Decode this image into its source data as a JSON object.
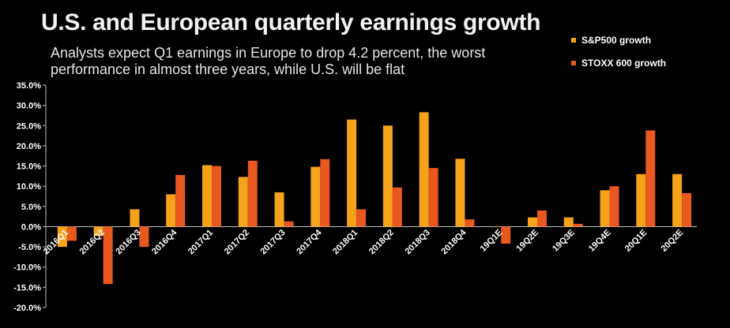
{
  "chart_data": {
    "type": "bar",
    "title": "U.S. and European quarterly earnings growth",
    "subtitle": "Analysts expect Q1 earnings in Europe to drop 4.2 percent, the worst performance in almost three years, while U.S. will be flat",
    "categories": [
      "2016Q1",
      "2016Q2",
      "2016Q3",
      "2016Q4",
      "2017Q1",
      "2017Q2",
      "2017Q3",
      "2017Q4",
      "2018Q1",
      "2018Q2",
      "2018Q3",
      "2018Q4",
      "19Q1E",
      "19Q2E",
      "19Q3E",
      "19Q4E",
      "20Q1E",
      "20Q2E"
    ],
    "series": [
      {
        "name": "S&P500 growth",
        "color": "#f7a21b",
        "values": [
          -5.0,
          -2.3,
          4.3,
          8.0,
          15.2,
          12.3,
          8.5,
          14.8,
          26.5,
          25.0,
          28.3,
          16.8,
          -0.1,
          2.3,
          2.3,
          9.0,
          13.0,
          13.0
        ]
      },
      {
        "name": "STOXX 600 growth",
        "color": "#e8581f",
        "values": [
          -3.5,
          -14.2,
          -5.0,
          12.8,
          15.0,
          16.3,
          1.3,
          16.7,
          4.3,
          9.7,
          14.5,
          1.8,
          -4.2,
          4.0,
          0.7,
          10.0,
          23.8,
          8.3
        ]
      }
    ],
    "yticks": [
      "35.0%",
      "30.0%",
      "25.0%",
      "20.0%",
      "15.0%",
      "10.0%",
      "5.0%",
      "0.0%",
      "-5.0%",
      "-10.0%",
      "-15.0%",
      "-20.0%"
    ],
    "ylim": [
      -20,
      35
    ],
    "xlabel": "",
    "ylabel": "",
    "legend_position": "top-right",
    "grid": false
  }
}
